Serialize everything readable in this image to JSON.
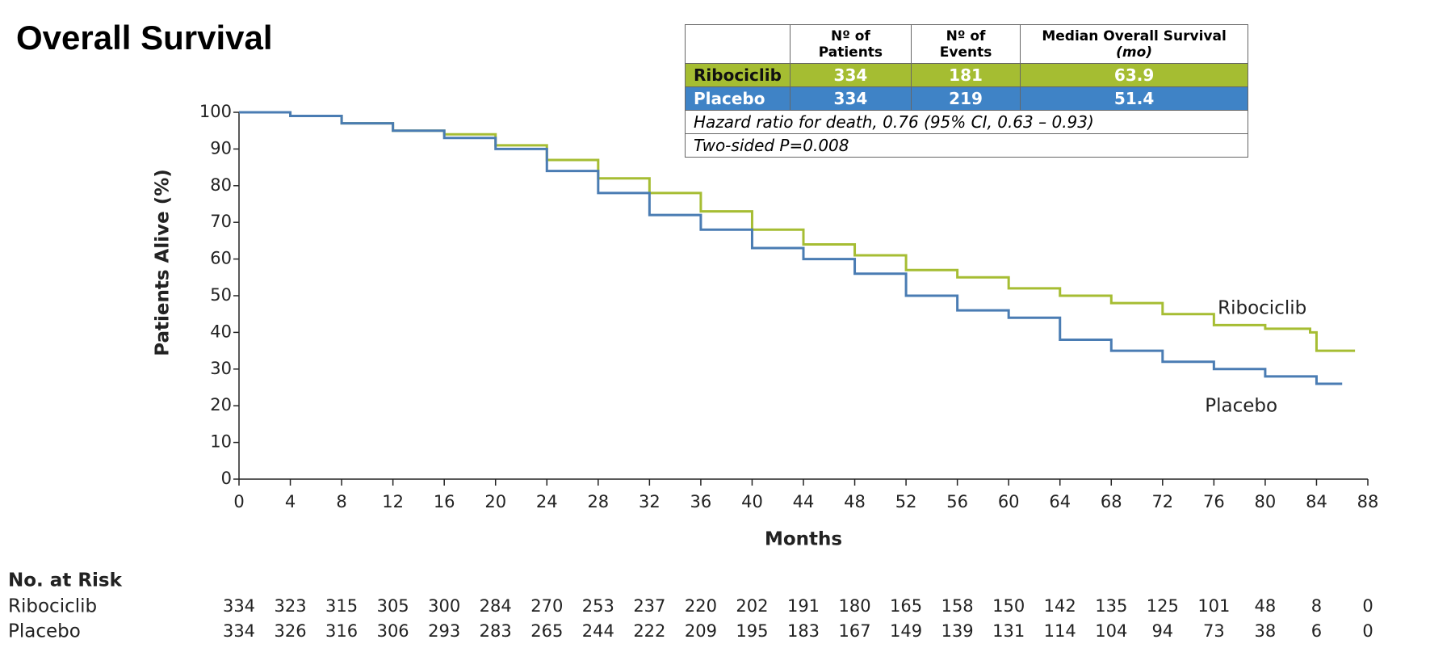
{
  "chart_data": {
    "type": "line",
    "step": true,
    "title": "Overall Survival",
    "x_label": "Months",
    "y_label": "Patients Alive (%)",
    "xlim": [
      0,
      88
    ],
    "xticks": [
      0,
      4,
      8,
      12,
      16,
      20,
      24,
      28,
      32,
      36,
      40,
      44,
      48,
      52,
      56,
      60,
      64,
      68,
      72,
      76,
      80,
      84,
      88
    ],
    "ylim": [
      0,
      100
    ],
    "yticks": [
      0,
      10,
      20,
      30,
      40,
      50,
      60,
      70,
      80,
      90,
      100
    ],
    "series": [
      {
        "name": "Ribociclib",
        "color": "#a6bd33",
        "x": [
          0,
          4,
          8,
          12,
          16,
          20,
          24,
          28,
          32,
          36,
          40,
          44,
          48,
          52,
          56,
          60,
          64,
          68,
          72,
          76,
          80,
          83.5,
          84,
          87
        ],
        "values": [
          100,
          99,
          97,
          95,
          94,
          91,
          87,
          82,
          78,
          73,
          68,
          64,
          61,
          57,
          55,
          52,
          50,
          48,
          45,
          42,
          41,
          40,
          35,
          35
        ]
      },
      {
        "name": "Placebo",
        "color": "#4a7cb3",
        "x": [
          0,
          4,
          8,
          12,
          16,
          20,
          24,
          28,
          32,
          36,
          40,
          44,
          48,
          52,
          56,
          60,
          64,
          68,
          72,
          76,
          80,
          84,
          86
        ],
        "values": [
          100,
          99,
          97,
          95,
          93,
          90,
          84,
          78,
          72,
          68,
          63,
          60,
          56,
          50,
          46,
          44,
          38,
          35,
          32,
          30,
          28,
          26,
          26
        ]
      }
    ]
  },
  "summary_table": {
    "columns": [
      "Nº of Patients",
      "Nº of Events"
    ],
    "median_header": "Median Overall Survival",
    "median_unit": "(mo)",
    "rows": [
      {
        "name": "Ribociclib",
        "fill": "#a5bd32",
        "patients": 334,
        "events": 181,
        "median": 63.9
      },
      {
        "name": "Placebo",
        "fill": "#3f83c6",
        "patients": 334,
        "events": 219,
        "median": 51.4
      }
    ],
    "notes": [
      "Hazard ratio for death, 0.76 (95% CI, 0.63 – 0.93)",
      "Two-sided P=0.008"
    ]
  },
  "at_risk": {
    "title": "No. at Risk",
    "rows": [
      {
        "name": "Ribociclib",
        "values": [
          334,
          323,
          315,
          305,
          300,
          284,
          270,
          253,
          237,
          220,
          202,
          191,
          180,
          165,
          158,
          150,
          142,
          135,
          125,
          101,
          48,
          8,
          0
        ]
      },
      {
        "name": "Placebo",
        "values": [
          334,
          326,
          316,
          306,
          293,
          283,
          265,
          244,
          222,
          209,
          195,
          183,
          167,
          149,
          139,
          131,
          114,
          104,
          94,
          73,
          38,
          6,
          0
        ]
      }
    ]
  }
}
